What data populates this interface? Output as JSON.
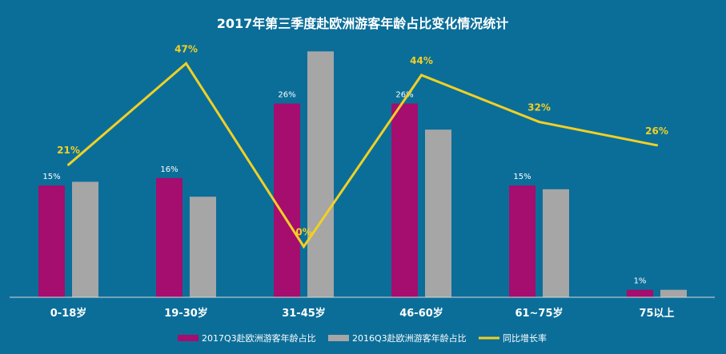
{
  "chart_data": {
    "type": "bar",
    "title": "2017年第三季度赴欧洲游客年龄占比变化情况统计",
    "categories": [
      "0-18岁",
      "19-30岁",
      "31-45岁",
      "46-60岁",
      "61~75岁",
      "75以上"
    ],
    "series": [
      {
        "name": "2017Q3赴欧洲游客年龄占比",
        "kind": "bar",
        "color": "#A50D6E",
        "values": [
          15,
          16,
          26,
          26,
          15,
          1
        ],
        "labels": [
          "15%",
          "16%",
          "26%",
          "26%",
          "15%",
          "1%"
        ]
      },
      {
        "name": "2016Q3赴欧洲游客年龄占比",
        "kind": "bar",
        "color": "#A6A6A6",
        "values": [
          15.5,
          13.5,
          33,
          22.5,
          14.5,
          1
        ]
      },
      {
        "name": "同比增长率",
        "kind": "line",
        "color": "#F2D024",
        "values": [
          21,
          47,
          0,
          44,
          32,
          26
        ],
        "labels": [
          "21%",
          "47%",
          "0%",
          "44%",
          "32%",
          "26%"
        ]
      }
    ],
    "ylim": [
      0,
      34
    ],
    "y2lim": [
      -13,
      52
    ],
    "legend": "bottom",
    "grid": false,
    "background": "#0B6E99"
  }
}
